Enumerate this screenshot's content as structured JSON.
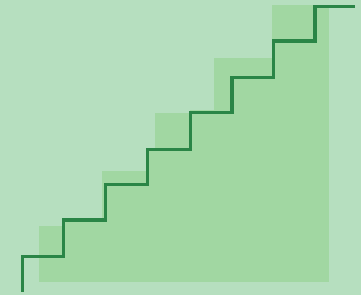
{
  "illustration": {
    "subject": "staircase",
    "step_count": 8,
    "colors": {
      "background": "#b6dfbf",
      "fill": "#a1d7a2",
      "stroke": "#2a8546"
    }
  }
}
